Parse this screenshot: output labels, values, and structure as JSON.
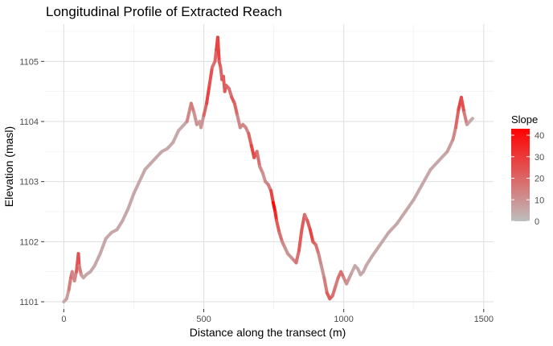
{
  "chart_data": {
    "type": "line",
    "title": "Longitudinal Profile of Extracted Reach",
    "xlabel": "Distance along the transect (m)",
    "ylabel": "Elevation (masl)",
    "xlim": [
      -70,
      1535
    ],
    "ylim": [
      1100.88,
      1105.62
    ],
    "x_ticks": [
      0,
      500,
      1000,
      1500
    ],
    "x_tick_labels": [
      "0",
      "500",
      "1000",
      "1500"
    ],
    "y_ticks": [
      1101,
      1102,
      1103,
      1104,
      1105
    ],
    "y_tick_labels": [
      "1101",
      "1102",
      "1103",
      "1104",
      "1105"
    ],
    "grid": true,
    "legend": {
      "title": "Slope",
      "position": "right",
      "range": [
        0,
        43
      ],
      "ticks": [
        0,
        10,
        20,
        30,
        40
      ],
      "tick_labels": [
        "0",
        "10",
        "20",
        "30",
        "40"
      ],
      "color_low": "#bebebe",
      "color_high": "#ff0000"
    },
    "series": [
      {
        "x": [
          0,
          10,
          18,
          25,
          30,
          38,
          45,
          52,
          55,
          62,
          70,
          80,
          95,
          110,
          130,
          150,
          170,
          190,
          210,
          230,
          250,
          270,
          290,
          310,
          330,
          350,
          370,
          390,
          410,
          430,
          440,
          455,
          465,
          475,
          485,
          490,
          500,
          510,
          520,
          530,
          540,
          545,
          550,
          555,
          560,
          565,
          570,
          575,
          580,
          590,
          600,
          610,
          620,
          630,
          640,
          650,
          660,
          670,
          680,
          690,
          700,
          710,
          720,
          730,
          740,
          748,
          755,
          760,
          770,
          780,
          790,
          800,
          810,
          820,
          830,
          840,
          850,
          860,
          870,
          880,
          890,
          900,
          910,
          920,
          930,
          940,
          950,
          960,
          970,
          980,
          990,
          1000,
          1010,
          1020,
          1030,
          1040,
          1050,
          1060,
          1070,
          1080,
          1100,
          1130,
          1160,
          1190,
          1220,
          1250,
          1280,
          1310,
          1340,
          1370,
          1390,
          1400,
          1410,
          1420,
          1430,
          1440,
          1450,
          1460
        ],
        "y": [
          1101.0,
          1101.05,
          1101.2,
          1101.4,
          1101.5,
          1101.35,
          1101.5,
          1101.8,
          1101.6,
          1101.45,
          1101.4,
          1101.45,
          1101.5,
          1101.6,
          1101.8,
          1102.05,
          1102.15,
          1102.2,
          1102.35,
          1102.55,
          1102.8,
          1103.0,
          1103.2,
          1103.3,
          1103.4,
          1103.5,
          1103.55,
          1103.65,
          1103.85,
          1103.95,
          1104.0,
          1104.3,
          1104.15,
          1103.95,
          1104.0,
          1103.9,
          1104.1,
          1104.3,
          1104.6,
          1104.9,
          1105.0,
          1105.2,
          1105.4,
          1105.0,
          1104.9,
          1104.7,
          1104.75,
          1104.5,
          1104.6,
          1104.55,
          1104.4,
          1104.3,
          1104.1,
          1103.9,
          1103.95,
          1103.9,
          1103.8,
          1103.6,
          1103.4,
          1103.5,
          1103.25,
          1103.15,
          1103.0,
          1102.95,
          1102.85,
          1102.65,
          1102.5,
          1102.35,
          1102.15,
          1102.0,
          1101.9,
          1101.8,
          1101.75,
          1101.7,
          1101.65,
          1101.85,
          1102.2,
          1102.45,
          1102.35,
          1102.2,
          1102.0,
          1101.95,
          1101.8,
          1101.6,
          1101.4,
          1101.15,
          1101.05,
          1101.1,
          1101.25,
          1101.4,
          1101.5,
          1101.4,
          1101.3,
          1101.4,
          1101.5,
          1101.6,
          1101.55,
          1101.45,
          1101.5,
          1101.6,
          1101.75,
          1101.95,
          1102.15,
          1102.3,
          1102.5,
          1102.7,
          1102.95,
          1103.2,
          1103.35,
          1103.5,
          1103.7,
          1103.9,
          1104.2,
          1104.4,
          1104.15,
          1103.95,
          1104.0,
          1104.05
        ],
        "slope": [
          5,
          5,
          10,
          20,
          15,
          10,
          15,
          30,
          20,
          10,
          5,
          5,
          5,
          5,
          5,
          5,
          5,
          5,
          5,
          5,
          5,
          5,
          5,
          5,
          5,
          5,
          5,
          5,
          5,
          5,
          5,
          20,
          10,
          10,
          10,
          5,
          15,
          25,
          30,
          20,
          15,
          25,
          30,
          25,
          20,
          20,
          25,
          20,
          25,
          15,
          20,
          25,
          15,
          10,
          15,
          10,
          15,
          25,
          30,
          20,
          15,
          10,
          10,
          15,
          15,
          40,
          43,
          25,
          20,
          15,
          10,
          10,
          10,
          10,
          15,
          20,
          25,
          20,
          15,
          30,
          25,
          20,
          15,
          10,
          10,
          20,
          25,
          20,
          15,
          15,
          20,
          15,
          10,
          10,
          5,
          5,
          5,
          5,
          5,
          5,
          5,
          5,
          5,
          5,
          5,
          5,
          5,
          5,
          5,
          5,
          10,
          15,
          25,
          30,
          20,
          10,
          5,
          5
        ]
      }
    ]
  }
}
